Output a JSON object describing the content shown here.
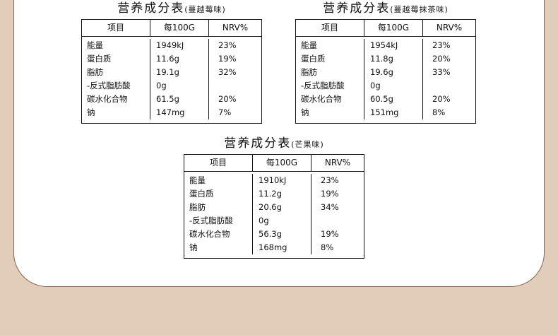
{
  "colors": {
    "background": "#e2cdbb",
    "card": "#ffffff",
    "card_border": "#8a6450",
    "text": "#111111"
  },
  "tables": [
    {
      "title": "营养成分表",
      "flavor": "(蔓越莓味)",
      "headers": [
        "项目",
        "每100G",
        "NRV%"
      ],
      "rows": [
        [
          "能量",
          "1949kJ",
          "23%"
        ],
        [
          "蛋白质",
          "11.6g",
          "19%"
        ],
        [
          "脂肪",
          "19.1g",
          "32%"
        ],
        [
          "-反式脂肪酸",
          "0g",
          ""
        ],
        [
          "碳水化合物",
          "61.5g",
          "20%"
        ],
        [
          "钠",
          "147mg",
          "7%"
        ]
      ]
    },
    {
      "title": "营养成分表",
      "flavor": "(蔓越莓抹茶味)",
      "headers": [
        "项目",
        "每100G",
        "NRV%"
      ],
      "rows": [
        [
          "能量",
          "1954kJ",
          "23%"
        ],
        [
          "蛋白质",
          "11.8g",
          "20%"
        ],
        [
          "脂肪",
          "19.6g",
          "33%"
        ],
        [
          "-反式脂肪酸",
          "0g",
          ""
        ],
        [
          "碳水化合物",
          "60.5g",
          "20%"
        ],
        [
          "钠",
          "151mg",
          "8%"
        ]
      ]
    },
    {
      "title": "营养成分表",
      "flavor": "(芒果味)",
      "headers": [
        "项目",
        "每100G",
        "NRV%"
      ],
      "rows": [
        [
          "能量",
          "1910kJ",
          "23%"
        ],
        [
          "蛋白质",
          "11.2g",
          "19%"
        ],
        [
          "脂肪",
          "20.6g",
          "34%"
        ],
        [
          "-反式脂肪酸",
          "0g",
          ""
        ],
        [
          "碳水化合物",
          "56.3g",
          "19%"
        ],
        [
          "钠",
          "168mg",
          "8%"
        ]
      ]
    }
  ]
}
